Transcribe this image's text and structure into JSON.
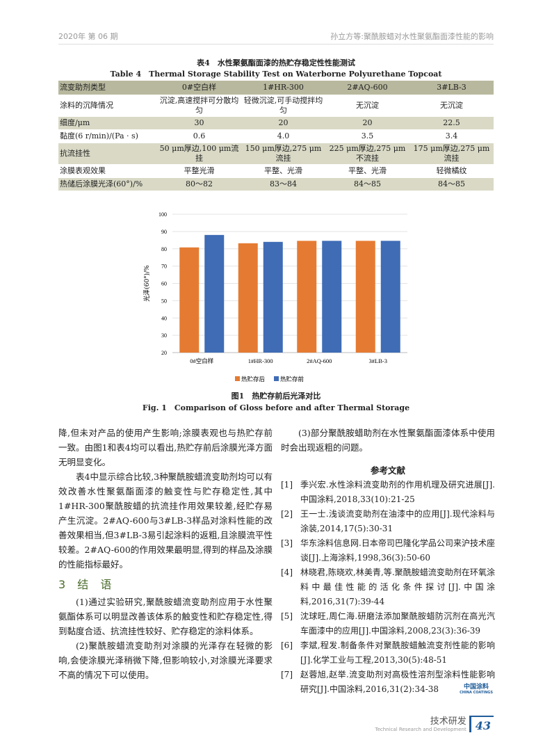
{
  "header": {
    "left": "2020年 第 06 期",
    "right": "孙立方等:聚酰胺蜡对水性聚氨酯面漆性能的影响"
  },
  "table": {
    "caption_cn": "表4　水性聚氨酯面漆的热贮存稳定性性能测试",
    "caption_en": "Table 4　Thermal Storage Stability Test on Waterborne Polyurethane Topcoat",
    "rows": [
      [
        "流变助剂类型",
        "0#空白样",
        "1#HR-300",
        "2#AQ-600",
        "3#LB-3"
      ],
      [
        "涂料的沉降情况",
        "沉淀,高速搅拌可分散均匀",
        "轻微沉淀,可手动搅拌均匀",
        "无沉淀",
        "无沉淀"
      ],
      [
        "细度/μm",
        "30",
        "20",
        "20",
        "22.5"
      ],
      [
        "黏度(6 r/min)/(Pa · s)",
        "0.6",
        "4.0",
        "3.5",
        "3.4"
      ],
      [
        "抗流挂性",
        "50 μm厚边,100 μm流挂",
        "150 μm厚边,275 μm流挂",
        "225 μm厚边,275 μm不流挂",
        "175 μm厚边,275 μm流挂"
      ],
      [
        "涂膜表观效果",
        "平整光滑",
        "平整、光滑",
        "平整、光滑",
        "轻微橘纹"
      ],
      [
        "热储后涂膜光泽(60°)/%",
        "80～82",
        "83～84",
        "84～85",
        "84～85"
      ]
    ]
  },
  "chart_data": {
    "type": "bar",
    "categories": [
      "0#空白样",
      "1#HR-300",
      "2#AQ-600",
      "3#LB-3"
    ],
    "series": [
      {
        "name": "热贮存后",
        "color": "#e57b32",
        "values": [
          80.8,
          83.2,
          84.6,
          84.6
        ]
      },
      {
        "name": "热贮存前",
        "color": "#3f6cb5",
        "values": [
          88.0,
          84.0,
          84.6,
          84.6
        ]
      }
    ],
    "ylabel": "光泽(60°)/%",
    "ylim": [
      20,
      100
    ],
    "yticks": [
      "20",
      "30",
      "40",
      "50",
      "60",
      "70",
      "80",
      "90",
      "100"
    ],
    "grid": true,
    "legend": "bottom"
  },
  "figure": {
    "caption_cn": "图1　热贮存前后光泽对比",
    "caption_en": "Fig. 1　Comparison of Gloss before and after Thermal Storage"
  },
  "left": {
    "p1": "降,但未对产品的使用产生影响;涂膜表观也与热贮存前一致。由图1和表4均可以看出,热贮存前后涂膜光泽方面无明显变化。",
    "p2": "表4中显示综合比较,3种聚酰胺蜡流变助剂均可以有效改善水性聚氨酯面漆的触变性与贮存稳定性,其中1#HR-300聚酰胺蜡的抗流挂作用效果较差,经贮存易产生沉淀。2#AQ-600与3#LB-3样品对涂料性能的改善效果相当,但3#LB-3易引起涂料的返粗,且涂膜流平性较差。2#AQ-600的作用效果最明显,得到的样品及涂膜的性能指标最好。",
    "section": "3 结 语",
    "p3": "(1)通过实验研究,聚酰胺蜡流变助剂应用于水性聚氨酯体系可以明显改善该体系的触变性和贮存稳定性,得到黏度合适、抗流挂性较好、贮存稳定的涂料体系。",
    "p4": "(2)聚酰胺蜡流变助剂对涂膜的光泽存在轻微的影响,会使涂膜光泽稍微下降,但影响较小,对涂膜光泽要求不高的情况下可以使用。"
  },
  "right": {
    "p1": "(3)部分聚酰胺蜡助剂在水性聚氨酯面漆体系中使用时会出现返粗的问题。",
    "refs_title": "参考文献",
    "refs": [
      [
        "[1]",
        "季兴宏.水性涂料流变助剂的作用机理及研究进展[J].中国涂料,2018,33(10):21-25"
      ],
      [
        "[2]",
        "王一士.浅谈流变助剂在油漆中的应用[J].现代涂料与涂装,2014,17(5):30-31"
      ],
      [
        "[3]",
        "华东涂料信息网.日本帝司巴隆化学品公司来沪技术座谈[J].上海涂料,1998,36(3):50-60"
      ],
      [
        "[4]",
        "林晓君,陈晓欢,林美青,等.聚酰胺蜡流变助剂在环氧涂料中最佳性能的活化条件探讨[J].中国涂料,2016,31(7):39-44"
      ],
      [
        "[5]",
        "沈球旺,周仁海.研磨法添加聚酰胺蜡防沉剂在高光汽车面漆中的应用[J].中国涂料,2008,23(3):36-39"
      ],
      [
        "[6]",
        "李斌,程发.制备条件对聚酰胺蜡触流变剂性能的影响[J].化学工业与工程,2013,30(5):48-51"
      ],
      [
        "[7]",
        "赵蓉旭,赵举.流变助剂对高极性溶剂型涂料性能影响研究[J].中国涂料,2016,31(2):34-38"
      ]
    ]
  },
  "logo": {
    "cn": "中国涂料",
    "en": "CHINA COATINGS"
  },
  "footer": {
    "section_cn": "技术研发",
    "section_en": "Technical Research and Development",
    "page": "43"
  }
}
